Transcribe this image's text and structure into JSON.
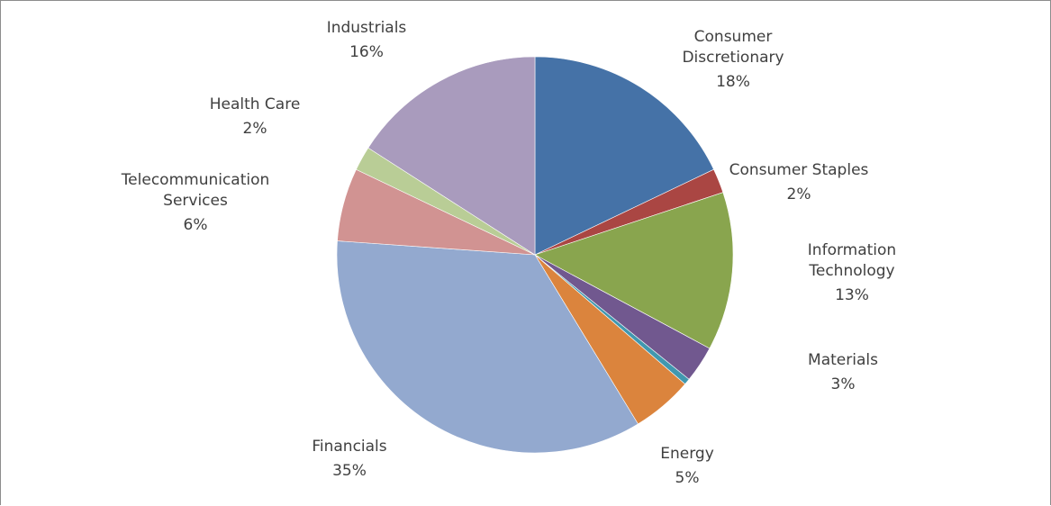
{
  "chart_data": {
    "type": "pie",
    "start_angle_deg": 0,
    "direction": "clockwise",
    "legend": "none",
    "slices": [
      {
        "label": "Consumer Discretionary",
        "value": 18,
        "value_label": "18%",
        "color": "#4572a7"
      },
      {
        "label": "Consumer Staples",
        "value": 2,
        "value_label": "2%",
        "color": "#aa4643"
      },
      {
        "label": "Information Technology",
        "value": 13,
        "value_label": "13%",
        "color": "#89a54e"
      },
      {
        "label": "Materials",
        "value": 3,
        "value_label": "3%",
        "color": "#71588f"
      },
      {
        "label": "",
        "value": 0.5,
        "value_label": "",
        "color": "#4198af"
      },
      {
        "label": "Energy",
        "value": 5,
        "value_label": "5%",
        "color": "#db843d"
      },
      {
        "label": "Financials",
        "value": 35,
        "value_label": "35%",
        "color": "#93a9cf"
      },
      {
        "label": "Telecommunication Services",
        "value": 6,
        "value_label": "6%",
        "color": "#d19392"
      },
      {
        "label": "Health Care",
        "value": 2,
        "value_label": "2%",
        "color": "#b9cd96"
      },
      {
        "label": "Industrials",
        "value": 16,
        "value_label": "16%",
        "color": "#a99bbd"
      }
    ]
  }
}
